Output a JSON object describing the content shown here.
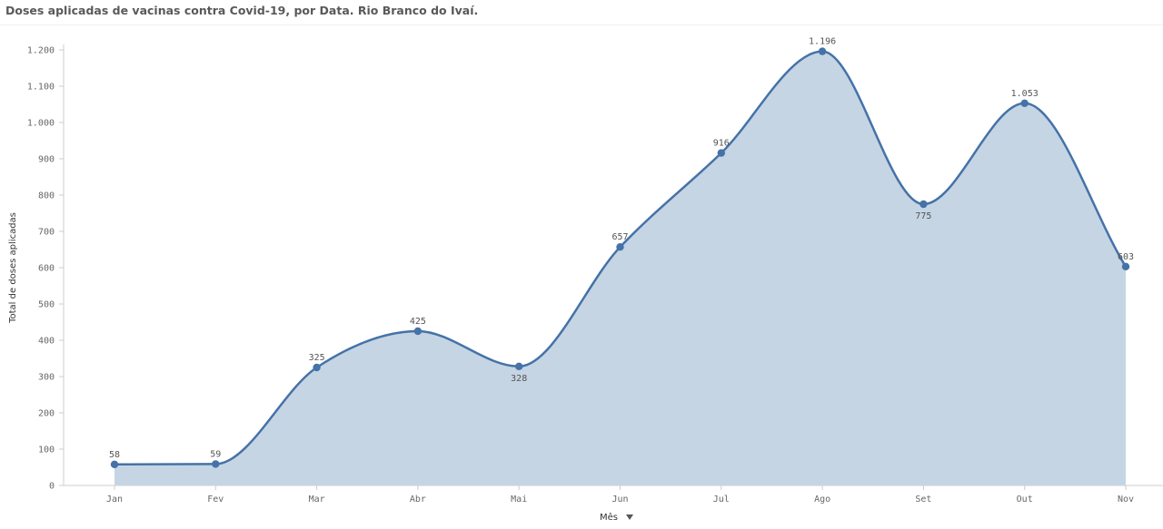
{
  "title": "Doses aplicadas de vacinas contra Covid-19, por Data.  Rio Branco do Ivaí.",
  "x_axis_dropdown_icon": "triangle-down-icon",
  "colors": {
    "line": "#4572a7",
    "area": "#c5d5e4",
    "axis": "#cccccc",
    "text": "#595959"
  },
  "chart_data": {
    "type": "area",
    "title": "Doses aplicadas de vacinas contra Covid-19, por Data.  Rio Branco do Ivaí.",
    "xlabel": "Mês",
    "ylabel": "Total de doses aplicadas",
    "categories": [
      "Jan",
      "Fev",
      "Mar",
      "Abr",
      "Mai",
      "Jun",
      "Jul",
      "Ago",
      "Set",
      "Out",
      "Nov"
    ],
    "values": [
      58,
      59,
      325,
      425,
      328,
      657,
      916,
      1196,
      775,
      1053,
      603
    ],
    "value_labels": [
      "58",
      "59",
      "325",
      "425",
      "328",
      "657",
      "916",
      "1.196",
      "775",
      "1.053",
      "603"
    ],
    "label_position": [
      "above",
      "above",
      "above",
      "above",
      "below",
      "above",
      "above",
      "above",
      "below",
      "above",
      "above"
    ],
    "ylim": [
      0,
      1200
    ],
    "yticks": [
      0,
      100,
      200,
      300,
      400,
      500,
      600,
      700,
      800,
      900,
      1000,
      1100,
      1200
    ],
    "ytick_labels": [
      "0",
      "100",
      "200",
      "300",
      "400",
      "500",
      "600",
      "700",
      "800",
      "900",
      "1.000",
      "1.100",
      "1.200"
    ],
    "grid": false,
    "legend": "none"
  }
}
